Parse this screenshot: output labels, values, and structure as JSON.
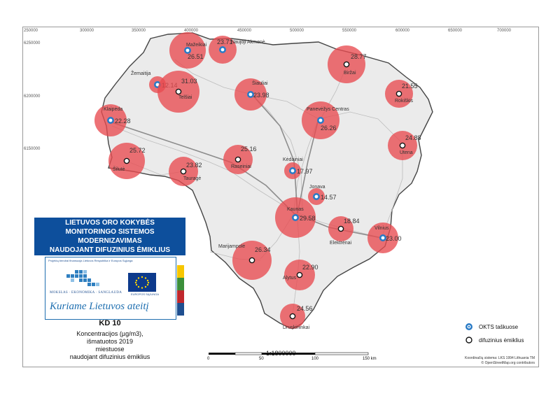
{
  "grid": {
    "x_labels": [
      "250000",
      "300000",
      "350000",
      "400000",
      "450000",
      "500000",
      "550000",
      "600000",
      "650000",
      "700000"
    ],
    "y_labels": [
      "6250000",
      "6200000",
      "6150000"
    ]
  },
  "cities": [
    {
      "name": "Mažeikiai",
      "value": "26.51",
      "type": "okts"
    },
    {
      "name": "Naujoji Akmenė",
      "value": "23.71",
      "type": "okts"
    },
    {
      "name": "Žemaitija",
      "value": "12.14",
      "type": "okts"
    },
    {
      "name": "Telšiai",
      "value": "31.03",
      "type": "diffuse"
    },
    {
      "name": "Šiauliai",
      "value": "23.98",
      "type": "okts"
    },
    {
      "name": "Biržai",
      "value": "28.77",
      "type": "diffuse"
    },
    {
      "name": "Rokiškis",
      "value": "21.55",
      "type": "diffuse"
    },
    {
      "name": "Klaipėda",
      "value": "22.28",
      "type": "okts"
    },
    {
      "name": "Panevėžys Centras",
      "value": "26.26",
      "type": "okts"
    },
    {
      "name": "Utena",
      "value": "24.88",
      "type": "diffuse"
    },
    {
      "name": "Šilutė",
      "value": "25.72",
      "type": "diffuse"
    },
    {
      "name": "Raseiniai",
      "value": "25.16",
      "type": "diffuse"
    },
    {
      "name": "Tauragė",
      "value": "23.82",
      "type": "diffuse"
    },
    {
      "name": "Kėdainiai",
      "value": "17.97",
      "type": "okts"
    },
    {
      "name": "Jonava",
      "value": "14.57",
      "type": "okts"
    },
    {
      "name": "Kaunas",
      "value": "29.58",
      "type": "okts"
    },
    {
      "name": "Elektrėnai",
      "value": "18.84",
      "type": "diffuse"
    },
    {
      "name": "Vilnius",
      "value": "23.00",
      "type": "okts"
    },
    {
      "name": "Marijampolė",
      "value": "26.34",
      "type": "diffuse"
    },
    {
      "name": "Alytus",
      "value": "22.90",
      "type": "diffuse"
    },
    {
      "name": "Druskininkai",
      "value": "24.56",
      "type": "diffuse"
    }
  ],
  "title_box": {
    "line1": "LIETUVOS ORO KOKYBĖS",
    "line2": "MONITORINGO SISTEMOS MODERNIZAVIMAS",
    "line3": "NAUDOJANT DIFUZINIUS ĖMIKLIUS"
  },
  "logo": {
    "project_text": "Projektą bendrai finansuoja Lietuvos Respublika ir Europos Sąjunga",
    "sanglauda": "MOKSLAS · EKONOMIKA · SANGLAUDA",
    "eu_text": "EUROPOS SĄJUNGA",
    "slogan": "Kuriame Lietuvos ateitį"
  },
  "map_title": "KD 10",
  "subtitle": {
    "line1": "Koncentracijos (µg/m3),",
    "line2": "išmatuotos 2019",
    "line3": "miestuose",
    "line4": "naudojant difuzinius ėmiklius"
  },
  "legend": [
    {
      "label": "OKTS taškuose",
      "type": "okts"
    },
    {
      "label": "difuzinius ėmiklius",
      "type": "diffuse"
    }
  ],
  "scale": {
    "text": "1:1800000",
    "ticks": [
      "0",
      "50",
      "100",
      "150 km"
    ]
  },
  "credits": {
    "line1": "Koordinačių sistema: LKS 1994 Lithuania TM",
    "line2": "© OpenStreetMap.org contributors"
  },
  "colors": {
    "bubble": "#e84a4f",
    "okts": "#2a7bc6",
    "title_bg": "#0d4f9c",
    "flag": [
      "#f7c600",
      "#3b8f3a",
      "#c0282d"
    ]
  }
}
